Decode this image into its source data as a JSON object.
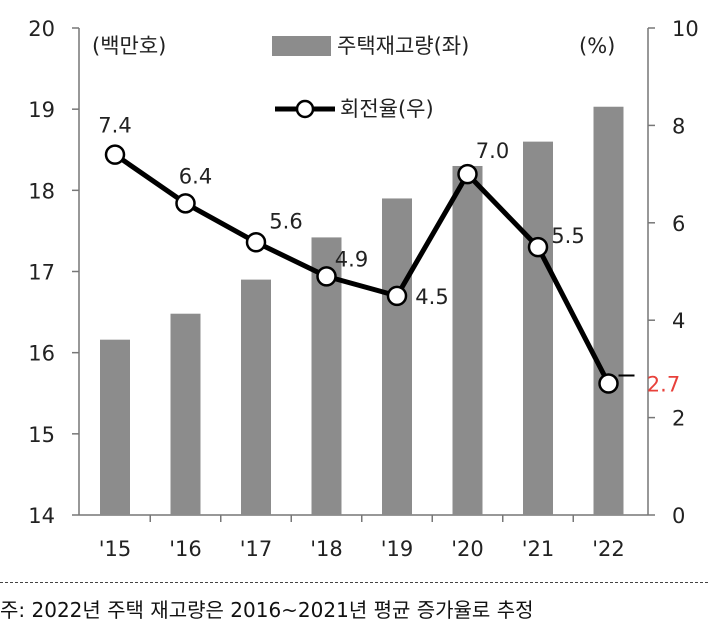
{
  "chart_data": {
    "type": "bar+line",
    "categories": [
      "'15",
      "'16",
      "'17",
      "'18",
      "'19",
      "'20",
      "'21",
      "'22"
    ],
    "left_axis": {
      "unit": "(백만호)",
      "ticks": [
        "14",
        "15",
        "16",
        "17",
        "18",
        "19",
        "20"
      ],
      "ylim": [
        14,
        20
      ]
    },
    "right_axis": {
      "unit": "(%)",
      "ticks": [
        "0",
        "2",
        "4",
        "6",
        "8",
        "10"
      ],
      "ylim": [
        0,
        10
      ]
    },
    "series": [
      {
        "name": "주택재고량(좌)",
        "kind": "bar",
        "axis": "left",
        "color": "#8c8c8c",
        "values": [
          16.16,
          16.48,
          16.9,
          17.42,
          17.9,
          18.3,
          18.6,
          19.03
        ]
      },
      {
        "name": "회전율(우)",
        "kind": "line",
        "axis": "right",
        "color": "#000000",
        "values": [
          7.4,
          6.4,
          5.6,
          4.9,
          4.5,
          7.0,
          5.5,
          2.7
        ],
        "labels": [
          "7.4",
          "6.4",
          "5.6",
          "4.9",
          "4.5",
          "7.0",
          "5.5",
          "2.7"
        ],
        "highlight_color": "#e8413b"
      }
    ]
  },
  "footnote": "주: 2022년 주택 재고량은 2016~2021년 평균 증가율로 추정"
}
